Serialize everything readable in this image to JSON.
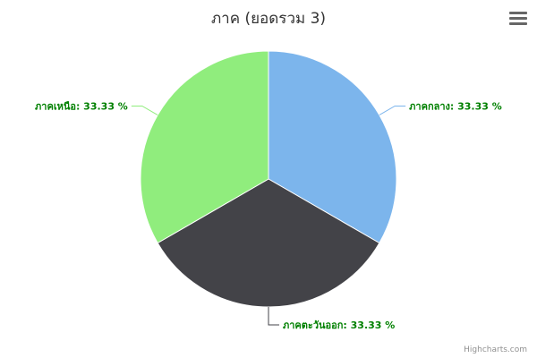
{
  "chart_data": {
    "type": "pie",
    "title": "ภาค (ยอดรวม 3)",
    "slices": [
      {
        "name": "ภาคกลาง",
        "value": 33.33,
        "label": "ภาคกลาง: 33.33 %",
        "color": "#7cb5ec"
      },
      {
        "name": "ภาคตะวันออก",
        "value": 33.33,
        "label": "ภาคตะวันออก: 33.33 %",
        "color": "#434348"
      },
      {
        "name": "ภาคเหนือ",
        "value": 33.33,
        "label": "ภาคเหนือ: 33.33 %",
        "color": "#90ed7d"
      }
    ],
    "label_color": "#008000"
  },
  "menu": {
    "icon": "hamburger-menu-icon"
  },
  "credits": "Highcharts.com"
}
